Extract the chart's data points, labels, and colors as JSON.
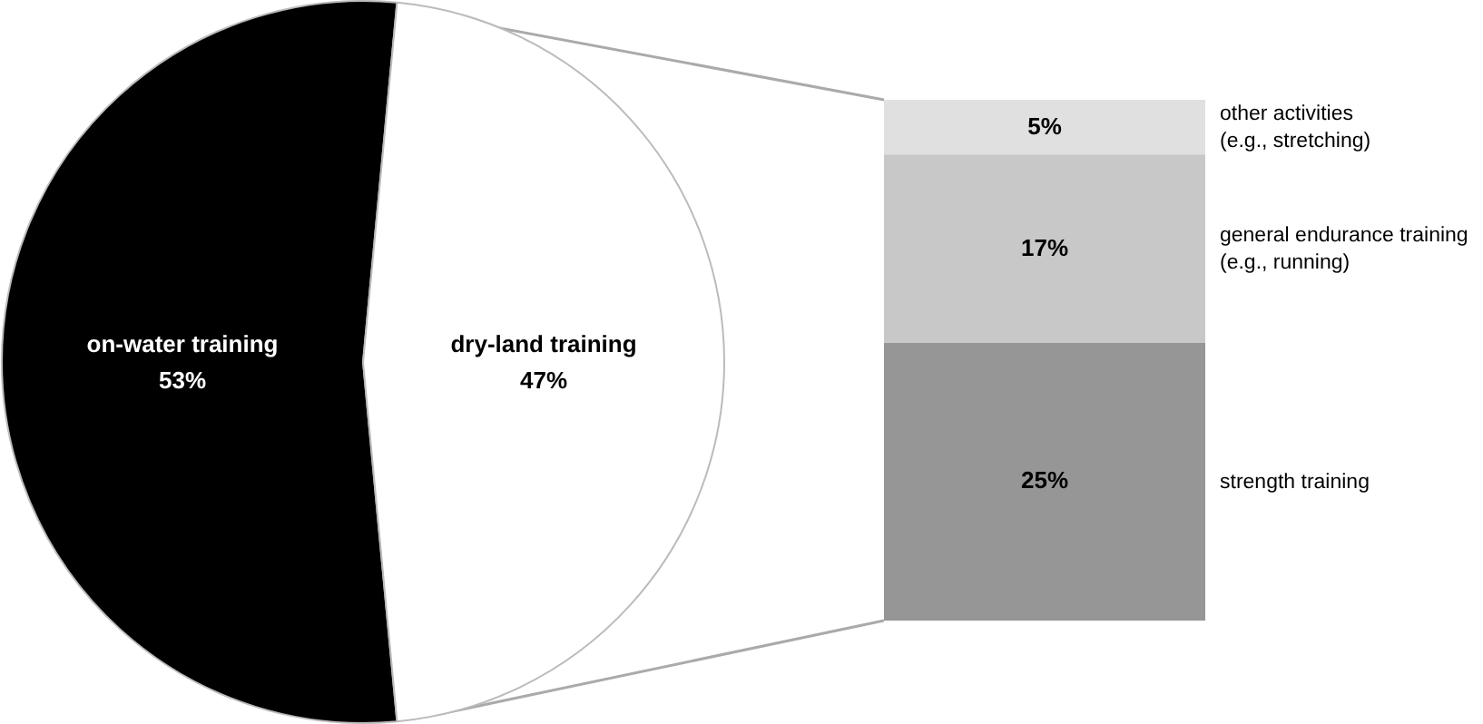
{
  "chart_data": [
    {
      "type": "pie",
      "categories": [
        "on-water training",
        "dry-land training"
      ],
      "values": [
        53,
        47
      ],
      "colors": [
        "#000000",
        "#ffffff"
      ],
      "value_labels": [
        "53%",
        "47%"
      ]
    },
    {
      "type": "bar",
      "stacked": true,
      "categories": [
        null
      ],
      "series": [
        {
          "name": "strength training",
          "color": "#969696",
          "values": [
            25
          ],
          "value_labels": [
            "25%"
          ]
        },
        {
          "name": "general endurance training (e.g., running)",
          "color": "#c8c8c8",
          "values": [
            17
          ],
          "value_labels": [
            "17%"
          ]
        },
        {
          "name": "other activities (e.g., stretching)",
          "color": "#e0e0e0",
          "values": [
            5
          ],
          "value_labels": [
            "5%"
          ]
        }
      ]
    }
  ]
}
